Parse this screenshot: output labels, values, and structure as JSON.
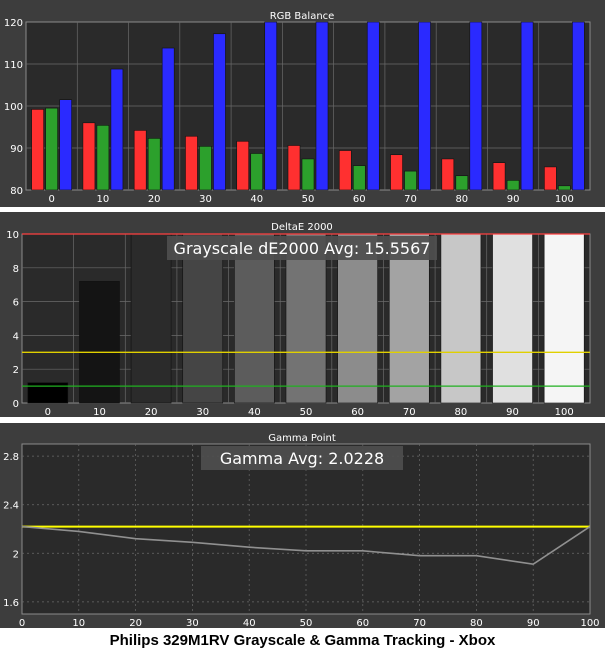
{
  "caption": "Philips 329M1RV Grayscale & Gamma Tracking - Xbox",
  "colors": {
    "panel_bg": "#3d3d3d",
    "plot_bg": "#2a2a2a",
    "text": "#ffffff",
    "grid": "#6a6a6a",
    "red": "#ff3030",
    "green": "#2ca02c",
    "blue": "#2a2aff",
    "threshold_red": "#ff4040",
    "threshold_yellow": "#e0d000",
    "threshold_green": "#20b020",
    "gamma_target": "#ffff00",
    "gamma_measured": "#909090"
  },
  "chart_data": [
    {
      "type": "bar",
      "title": "RGB Balance",
      "categories": [
        "0",
        "10",
        "20",
        "30",
        "40",
        "50",
        "60",
        "70",
        "80",
        "90",
        "100"
      ],
      "ylim": [
        80,
        120
      ],
      "yticks": [
        "80",
        "90",
        "100",
        "110",
        "120"
      ],
      "series": [
        {
          "color": "red",
          "values": [
            99.2,
            96.0,
            94.2,
            92.8,
            91.6,
            90.6,
            89.4,
            88.4,
            87.4,
            86.5,
            85.5
          ]
        },
        {
          "color": "green",
          "values": [
            99.5,
            95.4,
            92.3,
            90.4,
            88.7,
            87.4,
            85.8,
            84.5,
            83.4,
            82.3,
            81.0
          ]
        },
        {
          "color": "blue",
          "values": [
            101.5,
            108.8,
            113.8,
            117.2,
            120.0,
            120.0,
            120.0,
            120.0,
            120.0,
            120.0,
            120.0
          ]
        }
      ],
      "grid": true
    },
    {
      "type": "bar",
      "title": "DeltaE 2000",
      "annotation": "Grayscale dE2000 Avg: 15.5567",
      "categories": [
        "0",
        "10",
        "20",
        "30",
        "40",
        "50",
        "60",
        "70",
        "80",
        "90",
        "100"
      ],
      "ylim": [
        0,
        10
      ],
      "yticks": [
        "0",
        "2",
        "4",
        "6",
        "8",
        "10"
      ],
      "values": [
        1.2,
        7.2,
        10,
        10,
        10,
        10,
        10,
        10,
        10,
        10,
        10
      ],
      "bar_gray_levels": [
        0.0,
        0.08,
        0.17,
        0.27,
        0.36,
        0.45,
        0.55,
        0.64,
        0.78,
        0.88,
        0.96
      ],
      "threshold_lines": [
        {
          "value": 10,
          "color": "threshold_red"
        },
        {
          "value": 3,
          "color": "threshold_yellow"
        },
        {
          "value": 1,
          "color": "threshold_green"
        }
      ],
      "grid": true
    },
    {
      "type": "line",
      "title": "Gamma Point",
      "annotation": "Gamma Avg: 2.0228",
      "x": [
        0,
        10,
        20,
        30,
        40,
        50,
        60,
        70,
        80,
        90,
        100
      ],
      "xticks": [
        "0",
        "10",
        "20",
        "30",
        "40",
        "50",
        "60",
        "70",
        "80",
        "90",
        "100"
      ],
      "ylim": [
        1.5,
        2.9
      ],
      "yticks": [
        "1.6",
        "2",
        "2.4",
        "2.8"
      ],
      "series": [
        {
          "color": "gamma_target",
          "values": [
            2.22,
            2.22,
            2.22,
            2.22,
            2.22,
            2.22,
            2.22,
            2.22,
            2.22,
            2.22,
            2.22
          ]
        },
        {
          "color": "gamma_measured",
          "values": [
            2.22,
            2.18,
            2.12,
            2.09,
            2.05,
            2.02,
            2.02,
            1.98,
            1.98,
            1.91,
            2.22
          ]
        }
      ],
      "grid": true
    }
  ]
}
